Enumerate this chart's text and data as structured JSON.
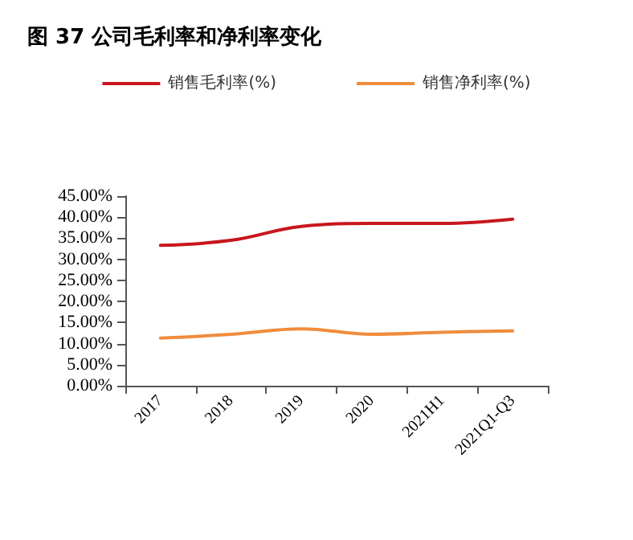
{
  "chart_data": {
    "type": "line",
    "title": "图 37 公司毛利率和净利率变化",
    "categories": [
      "2017",
      "2018",
      "2019",
      "2020",
      "2021H1",
      "2021Q1-Q3"
    ],
    "series": [
      {
        "name": "销售毛利率(%)",
        "color": "#c8161d",
        "values": [
          33.3,
          34.5,
          37.8,
          38.5,
          38.5,
          39.5
        ]
      },
      {
        "name": "销售净利率(%)",
        "color": "#f08c3c",
        "values": [
          11.3,
          12.2,
          13.5,
          12.2,
          12.7,
          13.0
        ]
      }
    ],
    "ylim": [
      0,
      45
    ],
    "yticks": [
      {
        "value": 0,
        "label": "0.00%"
      },
      {
        "value": 5,
        "label": "5.00%"
      },
      {
        "value": 10,
        "label": "10.00%"
      },
      {
        "value": 15,
        "label": "15.00%"
      },
      {
        "value": 20,
        "label": "20.00%"
      },
      {
        "value": 25,
        "label": "25.00%"
      },
      {
        "value": 30,
        "label": "30.00%"
      },
      {
        "value": 35,
        "label": "35.00%"
      },
      {
        "value": 40,
        "label": "40.00%"
      },
      {
        "value": 45,
        "label": "45.00%"
      }
    ],
    "grid": false,
    "legend": "top",
    "marker": "none",
    "line_style": "solid"
  }
}
